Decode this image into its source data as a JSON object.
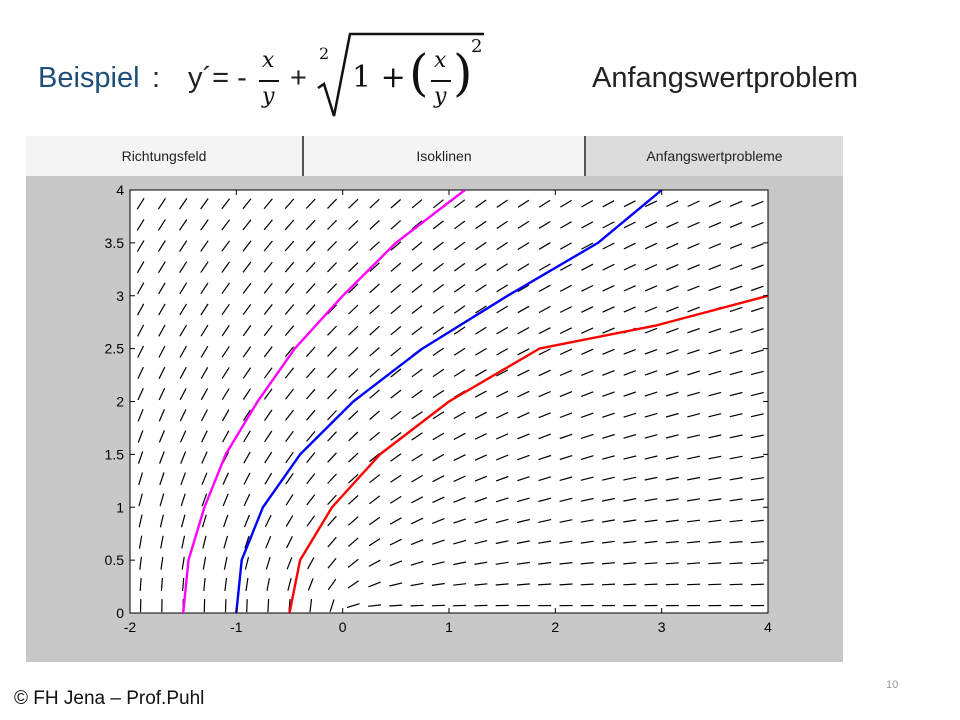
{
  "slide": {
    "label": "Beispiel",
    "colon": ":",
    "equation_lhs": "y´= -",
    "plus": "+",
    "frac_num": "x",
    "frac_den": "y",
    "root_index": "2",
    "root_one_plus": "1 +",
    "paren_open": "(",
    "paren_close": ")",
    "exponent": "2",
    "heading": "Anfangswertproblem",
    "footer": "© FH Jena – Prof.Puhl",
    "page_number": "10"
  },
  "tabs": [
    {
      "label": "Richtungsfeld"
    },
    {
      "label": "Isoklinen"
    },
    {
      "label": "Anfangswertprobleme"
    }
  ],
  "colors": {
    "magenta": "#ff00ff",
    "blue": "#0000ff",
    "red": "#ff0000",
    "field": "#000000"
  },
  "chart_data": {
    "type": "line",
    "xlim": [
      -2,
      4
    ],
    "ylim": [
      0,
      4
    ],
    "x_ticks": [
      "-2",
      "-1",
      "0",
      "1",
      "2",
      "3",
      "4"
    ],
    "y_ticks": [
      "0",
      "0.5",
      "1",
      "1.5",
      "2",
      "2.5",
      "3",
      "3.5",
      "4"
    ],
    "grid": false,
    "direction_field": "y' = -x/y + sqrt(1 + (x/y)^2)",
    "series": [
      {
        "color": "magenta",
        "x": [
          -1.5,
          -1.45,
          -1.3,
          -1.1,
          -0.8,
          -0.45,
          0.0,
          0.5,
          1.15
        ],
        "y": [
          0,
          0.5,
          1.0,
          1.5,
          2.0,
          2.5,
          3.0,
          3.5,
          4.0
        ]
      },
      {
        "color": "blue",
        "x": [
          -1.0,
          -0.95,
          -0.75,
          -0.4,
          0.1,
          0.75,
          1.55,
          2.4,
          3.0
        ],
        "y": [
          0,
          0.5,
          1.0,
          1.5,
          2.0,
          2.5,
          3.0,
          3.5,
          4.0
        ]
      },
      {
        "color": "red",
        "x": [
          -0.5,
          -0.4,
          -0.1,
          0.35,
          1.0,
          1.85,
          2.95,
          4.0
        ],
        "y": [
          0,
          0.5,
          1.0,
          1.5,
          2.0,
          2.5,
          2.72,
          3.0
        ]
      }
    ]
  }
}
